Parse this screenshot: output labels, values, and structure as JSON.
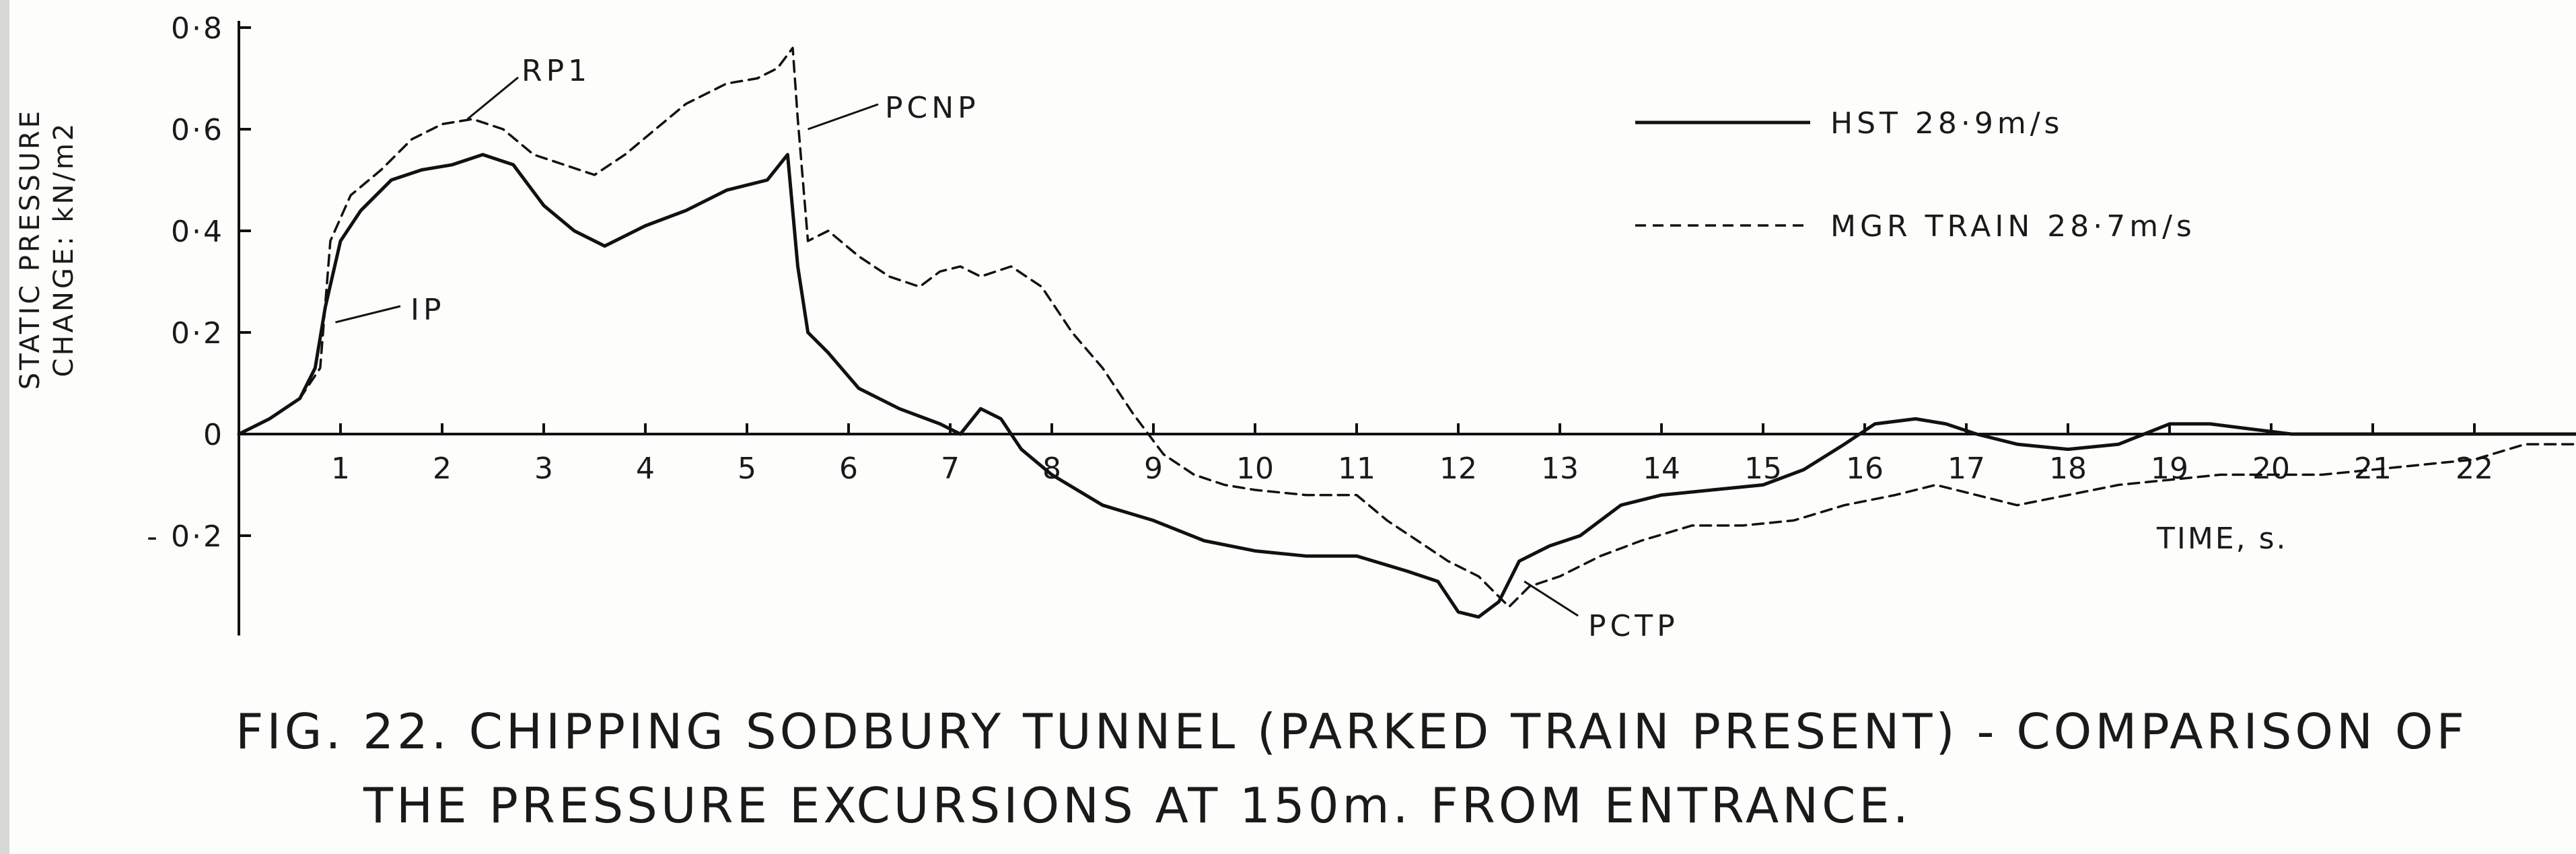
{
  "chart_data": {
    "type": "line",
    "title": "",
    "xlabel": "TIME, s.",
    "ylabel_line1": "STATIC  PRESSURE",
    "ylabel_line2": "CHANGE: kN/m2",
    "xlim": [
      0,
      23
    ],
    "ylim": [
      -0.37,
      0.8
    ],
    "grid": false,
    "legend_position": "top-right",
    "x_ticks": [
      1,
      2,
      3,
      4,
      5,
      6,
      7,
      8,
      9,
      10,
      11,
      12,
      13,
      14,
      15,
      16,
      17,
      18,
      19,
      20,
      21,
      22
    ],
    "x_tick_labels": [
      "1",
      "2",
      "3",
      "4",
      "5",
      "6",
      "7",
      "8",
      "9",
      "10",
      "11",
      "12",
      "13",
      "14",
      "15",
      "16",
      "17",
      "18",
      "19",
      "20",
      "21",
      "22"
    ],
    "y_ticks": [
      0.8,
      0.6,
      0.4,
      0.2,
      0,
      -0.2
    ],
    "y_tick_labels": [
      "0·8",
      "0·6",
      "0·4",
      "0·2",
      "0",
      "- 0·2"
    ],
    "series": [
      {
        "name": "HST  28·9m/s",
        "style": "solid",
        "color": "#111111",
        "x": [
          0,
          0.3,
          0.6,
          0.75,
          0.85,
          1.0,
          1.2,
          1.5,
          1.8,
          2.1,
          2.4,
          2.7,
          3.0,
          3.3,
          3.6,
          4.0,
          4.4,
          4.8,
          5.2,
          5.4,
          5.5,
          5.6,
          5.8,
          6.1,
          6.5,
          6.9,
          7.1,
          7.3,
          7.5,
          7.7,
          8.0,
          8.5,
          9.0,
          9.5,
          10.0,
          10.5,
          11.0,
          11.5,
          11.8,
          12.0,
          12.2,
          12.4,
          12.6,
          12.9,
          13.2,
          13.6,
          14.0,
          14.5,
          15.0,
          15.4,
          15.8,
          16.1,
          16.5,
          16.8,
          17.1,
          17.5,
          18.0,
          18.5,
          19.0,
          19.4,
          19.8,
          20.2,
          21,
          22,
          23
        ],
        "y": [
          0,
          0.03,
          0.07,
          0.13,
          0.25,
          0.38,
          0.44,
          0.5,
          0.52,
          0.53,
          0.55,
          0.53,
          0.45,
          0.4,
          0.37,
          0.41,
          0.44,
          0.48,
          0.5,
          0.55,
          0.33,
          0.2,
          0.16,
          0.09,
          0.05,
          0.02,
          0,
          0.05,
          0.03,
          -0.03,
          -0.08,
          -0.14,
          -0.17,
          -0.21,
          -0.23,
          -0.24,
          -0.24,
          -0.27,
          -0.29,
          -0.35,
          -0.36,
          -0.33,
          -0.25,
          -0.22,
          -0.2,
          -0.14,
          -0.12,
          -0.11,
          -0.1,
          -0.07,
          -0.02,
          0.02,
          0.03,
          0.02,
          0,
          -0.02,
          -0.03,
          -0.02,
          0.02,
          0.02,
          0.01,
          0,
          0,
          0,
          0
        ]
      },
      {
        "name": "MGR TRAIN  28·7m/s",
        "style": "dashed",
        "color": "#111111",
        "x": [
          0,
          0.3,
          0.6,
          0.8,
          0.9,
          1.1,
          1.4,
          1.7,
          2.0,
          2.3,
          2.6,
          2.9,
          3.2,
          3.5,
          3.8,
          4.1,
          4.4,
          4.8,
          5.1,
          5.3,
          5.45,
          5.5,
          5.6,
          5.8,
          6.1,
          6.4,
          6.7,
          6.9,
          7.1,
          7.3,
          7.6,
          7.9,
          8.2,
          8.5,
          8.8,
          9.1,
          9.4,
          9.7,
          10.0,
          10.5,
          11.0,
          11.3,
          11.6,
          11.9,
          12.2,
          12.5,
          12.7,
          13.0,
          13.4,
          13.8,
          14.3,
          14.8,
          15.3,
          15.8,
          16.3,
          16.7,
          17.1,
          17.5,
          18.0,
          18.5,
          19.0,
          19.5,
          20.0,
          20.5,
          21.0,
          21.5,
          22.0,
          22.5,
          23.0
        ],
        "y": [
          0,
          0.03,
          0.07,
          0.13,
          0.38,
          0.47,
          0.52,
          0.58,
          0.61,
          0.62,
          0.6,
          0.55,
          0.53,
          0.51,
          0.55,
          0.6,
          0.65,
          0.69,
          0.7,
          0.72,
          0.76,
          0.62,
          0.38,
          0.4,
          0.35,
          0.31,
          0.29,
          0.32,
          0.33,
          0.31,
          0.33,
          0.29,
          0.2,
          0.13,
          0.04,
          -0.04,
          -0.08,
          -0.1,
          -0.11,
          -0.12,
          -0.12,
          -0.17,
          -0.21,
          -0.25,
          -0.28,
          -0.34,
          -0.3,
          -0.28,
          -0.24,
          -0.21,
          -0.18,
          -0.18,
          -0.17,
          -0.14,
          -0.12,
          -0.1,
          -0.12,
          -0.14,
          -0.12,
          -0.1,
          -0.09,
          -0.08,
          -0.08,
          -0.08,
          -0.07,
          -0.06,
          -0.05,
          -0.02,
          -0.02
        ]
      }
    ],
    "annotations": [
      {
        "text": "RP1",
        "x": 2.1,
        "y": 0.62
      },
      {
        "text": "PCNP",
        "x": 5.55,
        "y": 0.6
      },
      {
        "text": "IP",
        "x": 0.9,
        "y": 0.22
      },
      {
        "text": "PCTP",
        "x": 12.6,
        "y": -0.28
      }
    ]
  },
  "caption": {
    "line1": "FIG. 22. CHIPPING SODBURY TUNNEL (PARKED TRAIN PRESENT) - COMPARISON OF",
    "line2": "THE PRESSURE EXCURSIONS AT 150m. FROM ENTRANCE."
  }
}
